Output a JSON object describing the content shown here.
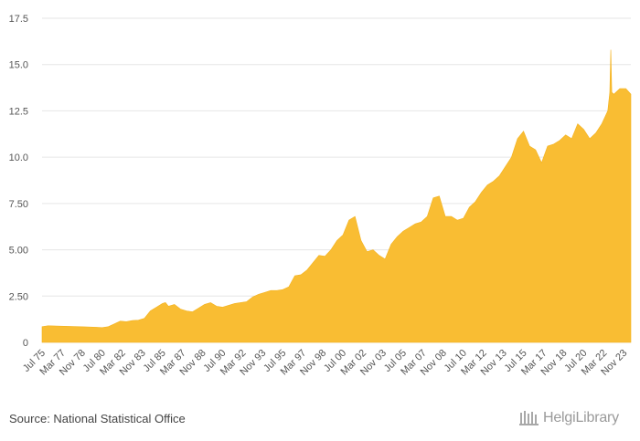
{
  "source_text": "Source: National Statistical Office",
  "brand": {
    "name": "HelgiLibrary",
    "icon": "library-columns-icon"
  },
  "colors": {
    "area": "#f9bd33",
    "grid": "#e6e6e6",
    "tick_text": "#555555"
  },
  "chart_data": {
    "type": "area",
    "title": "",
    "xlabel": "",
    "ylabel": "",
    "ylim": [
      0,
      17.5
    ],
    "yticks": [
      "0",
      "2.50",
      "5.00",
      "7.50",
      "10.0",
      "12.5",
      "15.0",
      "17.5"
    ],
    "ytick_values": [
      0,
      2.5,
      5,
      7.5,
      10,
      12.5,
      15,
      17.5
    ],
    "grid": true,
    "legend": "none",
    "x_tick_labels": [
      "Jul 75",
      "Mar 77",
      "Nov 78",
      "Jul 80",
      "Mar 82",
      "Nov 83",
      "Jul 85",
      "Mar 87",
      "Nov 88",
      "Jul 90",
      "Mar 92",
      "Nov 93",
      "Jul 95",
      "Mar 97",
      "Nov 98",
      "Jul 00",
      "Mar 02",
      "Nov 03",
      "Jul 05",
      "Mar 07",
      "Nov 08",
      "Jul 10",
      "Mar 12",
      "Nov 13",
      "Jul 15",
      "Mar 17",
      "Nov 18",
      "Jul 20",
      "Mar 22",
      "Nov 23"
    ],
    "x_range": [
      "Jul 75",
      "Jun 24"
    ],
    "x": [
      "Jul 75",
      "Jan 76",
      "Jan 77",
      "Jan 78",
      "Jan 79",
      "Jan 80",
      "Jul 80",
      "Jan 81",
      "Jul 81",
      "Jan 82",
      "Jul 82",
      "Jan 83",
      "Jul 83",
      "Jan 84",
      "Jul 84",
      "Jan 85",
      "Jul 85",
      "Oct 85",
      "Jan 86",
      "Jul 86",
      "Jan 87",
      "Jul 87",
      "Jan 88",
      "Jul 88",
      "Jan 89",
      "Jul 89",
      "Jan 90",
      "Jul 90",
      "Jan 91",
      "Jul 91",
      "Jan 92",
      "Jul 92",
      "Jan 93",
      "Jul 93",
      "Jan 94",
      "Jul 94",
      "Jan 95",
      "Jul 95",
      "Jan 96",
      "Jul 96",
      "Jan 97",
      "Jul 97",
      "Jan 98",
      "Jul 98",
      "Jan 99",
      "Jul 99",
      "Jan 00",
      "Jul 00",
      "Jan 01",
      "Jul 01",
      "Jan 02",
      "Jul 02",
      "Jan 03",
      "Jul 03",
      "Jan 04",
      "Jul 04",
      "Jan 05",
      "Jul 05",
      "Jan 06",
      "Jul 06",
      "Jan 07",
      "Jul 07",
      "Jan 08",
      "Jul 08",
      "Jan 09",
      "Jul 09",
      "Jan 10",
      "Jul 10",
      "Jan 11",
      "Jul 11",
      "Jan 12",
      "Jul 12",
      "Jan 13",
      "Jul 13",
      "Jan 14",
      "Jul 14",
      "Jan 15",
      "Jul 15",
      "Jan 16",
      "Jul 16",
      "Jan 17",
      "Jul 17",
      "Jan 18",
      "Jul 18",
      "Jan 19",
      "Jul 19",
      "Jan 20",
      "Jul 20",
      "Jan 21",
      "Jul 21",
      "Jan 22",
      "Jul 22",
      "Sep 22",
      "Oct 22",
      "Nov 22",
      "Jan 23",
      "Jul 23",
      "Jan 24",
      "Jun 24"
    ],
    "values": [
      0.85,
      0.9,
      0.88,
      0.86,
      0.84,
      0.82,
      0.8,
      0.85,
      1.0,
      1.15,
      1.12,
      1.18,
      1.2,
      1.3,
      1.7,
      1.9,
      2.1,
      2.15,
      1.95,
      2.05,
      1.8,
      1.7,
      1.65,
      1.85,
      2.05,
      2.15,
      1.95,
      1.9,
      2.0,
      2.1,
      2.15,
      2.2,
      2.45,
      2.6,
      2.7,
      2.8,
      2.8,
      2.85,
      3.0,
      3.6,
      3.65,
      3.9,
      4.3,
      4.7,
      4.65,
      5.0,
      5.5,
      5.8,
      6.6,
      6.8,
      5.5,
      4.9,
      5.0,
      4.7,
      4.5,
      5.3,
      5.7,
      6.0,
      6.2,
      6.4,
      6.5,
      6.8,
      7.8,
      7.9,
      6.8,
      6.8,
      6.6,
      6.7,
      7.3,
      7.6,
      8.1,
      8.5,
      8.7,
      9.0,
      9.5,
      10.0,
      11.0,
      11.4,
      10.6,
      10.4,
      9.7,
      10.6,
      10.7,
      10.9,
      11.2,
      11.0,
      11.8,
      11.5,
      11.0,
      11.3,
      11.8,
      12.5,
      13.5,
      15.8,
      13.5,
      13.4,
      13.7,
      13.7,
      13.4
    ]
  }
}
